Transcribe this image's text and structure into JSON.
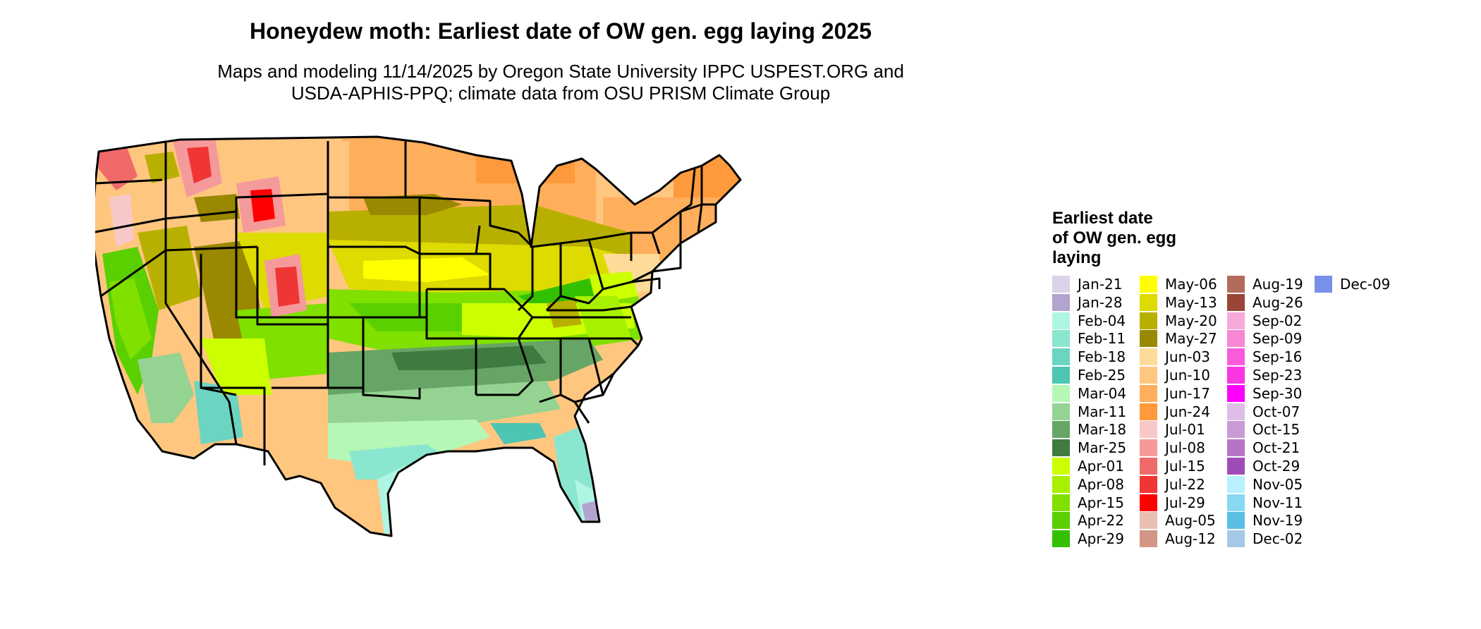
{
  "title": "Honeydew moth: Earliest date of OW gen. egg laying 2025",
  "subtitle_lines": [
    "Maps and modeling 11/14/2025 by Oregon State University IPPC USPEST.ORG and",
    "USDA-APHIS-PPQ; climate data from OSU PRISM Climate Group"
  ],
  "legend": {
    "title_lines": [
      "Earliest date",
      "of OW gen. egg",
      "laying"
    ],
    "items": [
      {
        "label": "Jan-21",
        "color": "#dcd3ea"
      },
      {
        "label": "Jan-28",
        "color": "#b3a3cf"
      },
      {
        "label": "Feb-04",
        "color": "#aff5e3"
      },
      {
        "label": "Feb-11",
        "color": "#8be6cf"
      },
      {
        "label": "Feb-18",
        "color": "#6bd5c1"
      },
      {
        "label": "Feb-25",
        "color": "#4cc5b2"
      },
      {
        "label": "Mar-04",
        "color": "#b5f7b5"
      },
      {
        "label": "Mar-11",
        "color": "#95d393"
      },
      {
        "label": "Mar-18",
        "color": "#66a565"
      },
      {
        "label": "Mar-25",
        "color": "#3f7a3f"
      },
      {
        "label": "Apr-01",
        "color": "#ccff00"
      },
      {
        "label": "Apr-08",
        "color": "#a7f000"
      },
      {
        "label": "Apr-15",
        "color": "#80e000"
      },
      {
        "label": "Apr-22",
        "color": "#5ad000"
      },
      {
        "label": "Apr-29",
        "color": "#33c000"
      },
      {
        "label": "May-06",
        "color": "#ffff00"
      },
      {
        "label": "May-13",
        "color": "#dddb00"
      },
      {
        "label": "May-20",
        "color": "#b8b000"
      },
      {
        "label": "May-27",
        "color": "#998800"
      },
      {
        "label": "Jun-03",
        "color": "#ffdb99"
      },
      {
        "label": "Jun-10",
        "color": "#ffc680"
      },
      {
        "label": "Jun-17",
        "color": "#ffae5c"
      },
      {
        "label": "Jun-24",
        "color": "#ff9a3c"
      },
      {
        "label": "Jul-01",
        "color": "#f8c8c8"
      },
      {
        "label": "Jul-08",
        "color": "#f59a9a"
      },
      {
        "label": "Jul-15",
        "color": "#f06a6a"
      },
      {
        "label": "Jul-22",
        "color": "#f03535"
      },
      {
        "label": "Jul-29",
        "color": "#ff0000"
      },
      {
        "label": "Aug-05",
        "color": "#e8bfb1"
      },
      {
        "label": "Aug-12",
        "color": "#d39585"
      },
      {
        "label": "Aug-19",
        "color": "#b56b5b"
      },
      {
        "label": "Aug-26",
        "color": "#9a4535"
      },
      {
        "label": "Sep-02",
        "color": "#f7aad9"
      },
      {
        "label": "Sep-09",
        "color": "#f787d5"
      },
      {
        "label": "Sep-16",
        "color": "#fa5adb"
      },
      {
        "label": "Sep-23",
        "color": "#fa35e2"
      },
      {
        "label": "Sep-30",
        "color": "#ff00ff"
      },
      {
        "label": "Oct-07",
        "color": "#e0bde8"
      },
      {
        "label": "Oct-15",
        "color": "#ca9ad6"
      },
      {
        "label": "Oct-21",
        "color": "#b774c6"
      },
      {
        "label": "Oct-29",
        "color": "#a04cb6"
      },
      {
        "label": "Nov-05",
        "color": "#b8f0ff"
      },
      {
        "label": "Nov-11",
        "color": "#88d8f2"
      },
      {
        "label": "Nov-19",
        "color": "#59bfe5"
      },
      {
        "label": "Dec-02",
        "color": "#a5c8e9"
      },
      {
        "label": "Dec-09",
        "color": "#7890ea"
      }
    ]
  }
}
